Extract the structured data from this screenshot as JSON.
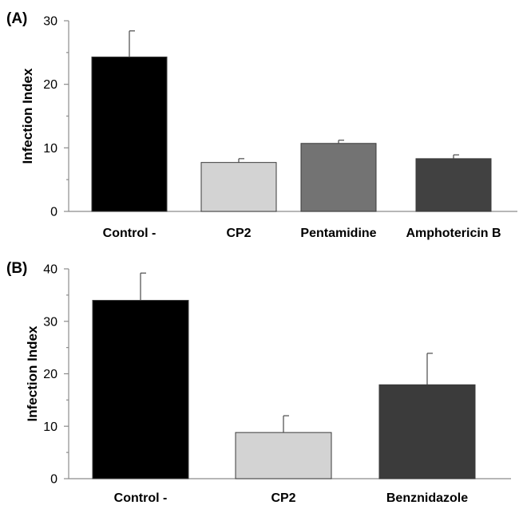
{
  "chart_data": [
    {
      "type": "bar",
      "panel_label": "(A)",
      "ylabel": "Infection Index",
      "ylim": [
        0,
        30
      ],
      "yticks": [
        0,
        10,
        20,
        30
      ],
      "categories": [
        "Control -",
        "CP2",
        "Pentamidine",
        "Amphotericin B"
      ],
      "values": [
        24.3,
        7.7,
        10.7,
        8.3
      ],
      "errors": [
        4.1,
        0.6,
        0.5,
        0.6
      ],
      "colors": [
        "#000000",
        "#d3d3d3",
        "#737373",
        "#414141"
      ],
      "grid": false,
      "legend": "none"
    },
    {
      "type": "bar",
      "panel_label": "(B)",
      "ylabel": "Infection Index",
      "ylim": [
        0,
        40
      ],
      "yticks": [
        0,
        10,
        20,
        30,
        40
      ],
      "categories": [
        "Control -",
        "CP2",
        "Benznidazole"
      ],
      "values": [
        34.0,
        8.8,
        17.9
      ],
      "errors": [
        5.2,
        3.2,
        6.0
      ],
      "colors": [
        "#000000",
        "#d3d3d3",
        "#3b3b3b"
      ],
      "grid": false,
      "legend": "none"
    }
  ]
}
